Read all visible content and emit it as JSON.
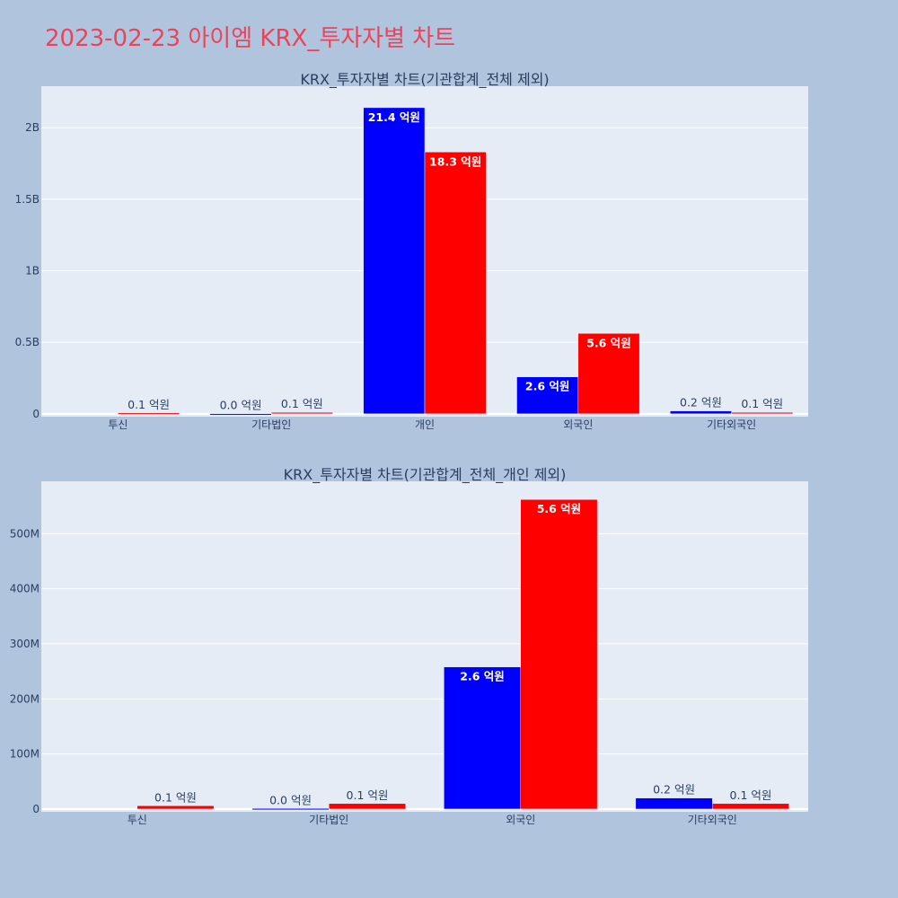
{
  "title": "2023-02-23 아이엠 KRX_투자자별 차트",
  "colors": {
    "buy": "#0000ff",
    "sell": "#ff0000",
    "plot_bg": "#e5ecf6",
    "page_bg": "#b0c4de",
    "title": "#e8455d"
  },
  "chart_data": [
    {
      "type": "bar",
      "title": "KRX_투자자별 차트(기관합계_전체 제외)",
      "categories": [
        "투신",
        "기타법인",
        "개인",
        "외국인",
        "기타외국인"
      ],
      "series": [
        {
          "values": [
            0,
            1000000,
            2140000000,
            258000000,
            20000000
          ],
          "text": [
            "",
            "0.0 억원",
            "21.4 억원",
            "2.6 억원",
            "0.2 억원"
          ]
        },
        {
          "values": [
            6000000,
            10000000,
            1830000000,
            562000000,
            10000000
          ],
          "text": [
            "0.1 억원",
            "0.1 억원",
            "18.3 억원",
            "5.6 억원",
            "0.1 억원"
          ]
        }
      ],
      "ylim": [
        -20000000,
        2290000000
      ],
      "yticks": [
        0,
        500000000,
        1000000000,
        1500000000,
        2000000000
      ],
      "ytick_labels": [
        "0",
        "0.5B",
        "1B",
        "1.5B",
        "2B"
      ],
      "grid": true
    },
    {
      "type": "bar",
      "title": "KRX_투자자별 차트(기관합계_전체_개인 제외)",
      "categories": [
        "투신",
        "기타법인",
        "외국인",
        "기타외국인"
      ],
      "series": [
        {
          "values": [
            0,
            1000000,
            258000000,
            20000000
          ],
          "text": [
            "",
            "0.0 억원",
            "2.6 억원",
            "0.2 억원"
          ]
        },
        {
          "values": [
            6000000,
            10000000,
            562000000,
            10000000
          ],
          "text": [
            "0.1 억원",
            "0.1 억원",
            "5.6 억원",
            "0.1 억원"
          ]
        }
      ],
      "ylim": [
        -5000000,
        595000000
      ],
      "yticks": [
        0,
        100000000,
        200000000,
        300000000,
        400000000,
        500000000
      ],
      "ytick_labels": [
        "0",
        "100M",
        "200M",
        "300M",
        "400M",
        "500M"
      ],
      "grid": true
    }
  ]
}
